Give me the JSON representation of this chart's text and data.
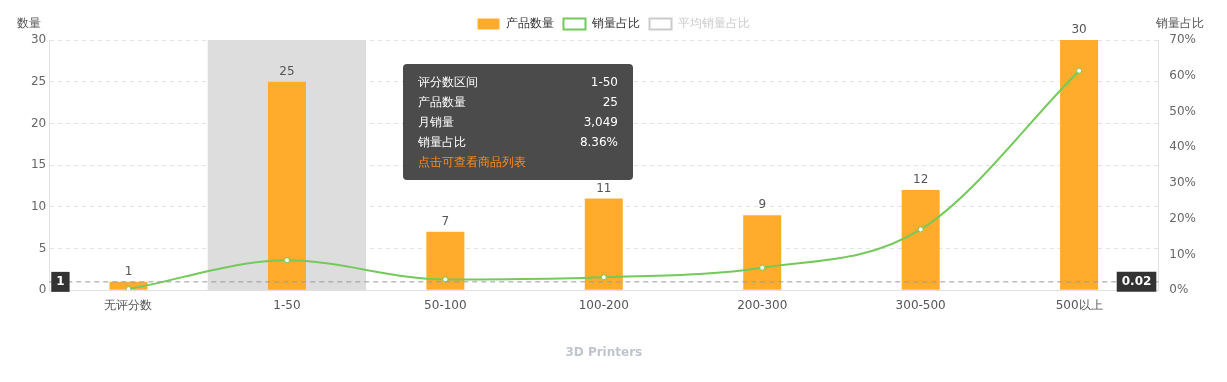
{
  "chart_data": {
    "type": "bar",
    "xlabel": "3D Printers",
    "ylabel": "数量",
    "y2label": "销量占比",
    "categories": [
      "无评分数",
      "1-50",
      "50-100",
      "100-200",
      "200-300",
      "300-500",
      "500以上"
    ],
    "series": [
      {
        "name": "产品数量",
        "color": "#ffac2d",
        "values": [
          1,
          25,
          7,
          11,
          9,
          12,
          30
        ],
        "value_labels": [
          "1",
          "25",
          "7",
          "11",
          "9",
          "12",
          "30"
        ]
      },
      {
        "name": "销量占比",
        "type": "line",
        "axis": "y2",
        "color": "#73c95a",
        "marker": "circle",
        "values": [
          0.3,
          8.36,
          3,
          3.6,
          6.3,
          17,
          61.4
        ]
      },
      {
        "name": "平均销量占比",
        "type": "line",
        "axis": "y2",
        "color": "#cccccc",
        "marker": "circle",
        "values": [
          null,
          null,
          null,
          null,
          null,
          null,
          null
        ]
      }
    ],
    "ylim": [
      0,
      30
    ],
    "yticks": [
      0,
      5,
      10,
      15,
      20,
      25,
      30
    ],
    "y2lim": [
      0,
      70
    ],
    "y2ticks": [
      {
        "value": 0,
        "label": "0%"
      },
      {
        "value": 10,
        "label": "10%"
      },
      {
        "value": 20,
        "label": "20%"
      },
      {
        "value": 30,
        "label": "30%"
      },
      {
        "value": 40,
        "label": "40%"
      },
      {
        "value": 50,
        "label": "50%"
      },
      {
        "value": 60,
        "label": "60%"
      },
      {
        "value": 70,
        "label": "70%"
      }
    ],
    "grid": "y",
    "legend": "top",
    "bands": [
      {
        "axis": "x",
        "from": "1-50",
        "to": "1-50",
        "color": "#dddddd"
      }
    ],
    "ref_lines": [
      {
        "axis": "y",
        "value": 1,
        "label": "1",
        "line_style": "dashed",
        "color": "#999999"
      }
    ],
    "annotations": [
      "评分数区间",
      "1-50",
      "产品数量",
      "25",
      "月销量",
      "3,049",
      "销量占比",
      "8.36%",
      "点击可查看商品列表",
      "0.02"
    ]
  }
}
